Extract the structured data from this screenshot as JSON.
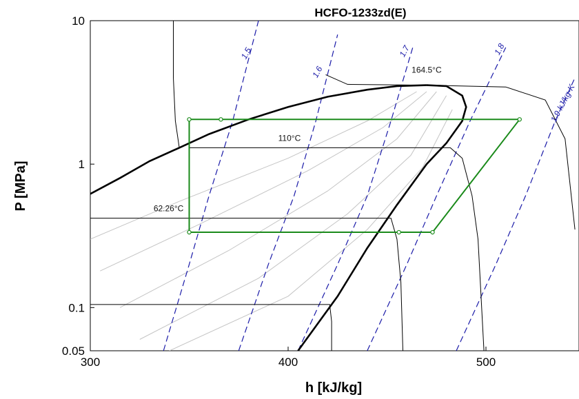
{
  "chart_data": {
    "type": "line",
    "title": "HCFO-1233zd(E)",
    "xlabel": "h [kJ/kg]",
    "ylabel": "P [MPa]",
    "xlim": [
      300,
      545
    ],
    "ylim": [
      0.05,
      10
    ],
    "y_scale": "log",
    "x_ticks": [
      "300",
      "400",
      "500"
    ],
    "y_ticks": [
      "0.05",
      "0.1",
      "1",
      "10"
    ],
    "grid": false,
    "legend": "none",
    "colors": {
      "saturation_dome": "#000000",
      "isotherm": "#000000",
      "quality_lines": "#c4c4c4",
      "isentrope": "#1a1aa8",
      "cycle": "#1a8a1a"
    },
    "saturation_liquid": [
      [
        300,
        0.62
      ],
      [
        315,
        0.8
      ],
      [
        330,
        1.05
      ],
      [
        345,
        1.3
      ],
      [
        360,
        1.62
      ],
      [
        380,
        2.05
      ],
      [
        400,
        2.5
      ],
      [
        420,
        2.95
      ],
      [
        440,
        3.3
      ],
      [
        455,
        3.5
      ],
      [
        470,
        3.55
      ]
    ],
    "saturation_vapor": [
      [
        470,
        3.55
      ],
      [
        480,
        3.5
      ],
      [
        488,
        3.0
      ],
      [
        490,
        2.5
      ],
      [
        488,
        2.0
      ],
      [
        480,
        1.4
      ],
      [
        470,
        1.0
      ],
      [
        455,
        0.52
      ],
      [
        440,
        0.26
      ],
      [
        425,
        0.12
      ],
      [
        405,
        0.05
      ]
    ],
    "critical_label": "164.5°C",
    "isotherms": [
      {
        "label": "110°C",
        "label_at": [
          395,
          1.45
        ],
        "points": [
          [
            350,
            1.3
          ],
          [
            482,
            1.3
          ],
          [
            488,
            1.1
          ],
          [
            493,
            0.6
          ],
          [
            496,
            0.3
          ],
          [
            499,
            0.05
          ]
        ]
      },
      {
        "label": "62.26°C",
        "label_at": [
          332,
          0.47
        ],
        "points": [
          [
            300,
            0.42
          ],
          [
            452,
            0.42
          ],
          [
            455,
            0.3
          ],
          [
            457,
            0.15
          ],
          [
            458,
            0.05
          ]
        ]
      },
      {
        "label": "",
        "points": [
          [
            300,
            0.105
          ],
          [
            421,
            0.105
          ],
          [
            422,
            0.08
          ],
          [
            422,
            0.05
          ]
        ]
      },
      {
        "label": "",
        "points": [
          [
            342,
            10
          ],
          [
            342,
            4
          ],
          [
            343,
            2.0
          ],
          [
            345,
            1.3
          ]
        ]
      },
      {
        "label": "",
        "points": [
          [
            419,
            4.2
          ],
          [
            430,
            3.6
          ],
          [
            470,
            3.55
          ],
          [
            510,
            3.45
          ],
          [
            530,
            2.8
          ],
          [
            540,
            1.5
          ],
          [
            545,
            0.35
          ]
        ]
      }
    ],
    "quality_lines": [
      {
        "points": [
          [
            300,
            0.3
          ],
          [
            345,
            0.55
          ],
          [
            400,
            1.1
          ],
          [
            440,
            2.0
          ],
          [
            465,
            3.2
          ]
        ]
      },
      {
        "points": [
          [
            305,
            0.18
          ],
          [
            355,
            0.38
          ],
          [
            410,
            0.9
          ],
          [
            448,
            1.8
          ],
          [
            470,
            3.2
          ]
        ]
      },
      {
        "points": [
          [
            315,
            0.1
          ],
          [
            370,
            0.25
          ],
          [
            420,
            0.65
          ],
          [
            455,
            1.5
          ],
          [
            475,
            3.2
          ]
        ]
      },
      {
        "points": [
          [
            325,
            0.06
          ],
          [
            385,
            0.16
          ],
          [
            430,
            0.45
          ],
          [
            462,
            1.15
          ],
          [
            480,
            3.0
          ]
        ]
      },
      {
        "points": [
          [
            340,
            0.05
          ],
          [
            400,
            0.12
          ],
          [
            440,
            0.35
          ],
          [
            468,
            0.95
          ],
          [
            483,
            2.4
          ]
        ]
      }
    ],
    "isentropes": [
      {
        "label": "1.5",
        "label_at": [
          380,
          5.8
        ],
        "points": [
          [
            337,
            0.05
          ],
          [
            350,
            0.2
          ],
          [
            360,
            0.6
          ],
          [
            372,
            2.0
          ],
          [
            385,
            10
          ]
        ]
      },
      {
        "label": "1.6",
        "label_at": [
          416,
          4.3
        ],
        "points": [
          [
            375,
            0.05
          ],
          [
            390,
            0.2
          ],
          [
            403,
            0.6
          ],
          [
            414,
            2.0
          ],
          [
            425,
            8
          ]
        ]
      },
      {
        "label": "1.7",
        "label_at": [
          460,
          6.0
        ],
        "points": [
          [
            405,
            0.05
          ],
          [
            425,
            0.2
          ],
          [
            440,
            0.6
          ],
          [
            452,
            2.0
          ],
          [
            463,
            6.5
          ]
        ]
      },
      {
        "label": "1.8",
        "label_at": [
          508,
          6.2
        ],
        "points": [
          [
            440,
            0.05
          ],
          [
            460,
            0.2
          ],
          [
            475,
            0.6
          ],
          [
            492,
            2.0
          ],
          [
            510,
            6.5
          ]
        ]
      },
      {
        "label": "1.9 kJ/kg-K",
        "label_at": [
          540,
          2.6
        ],
        "points": [
          [
            485,
            0.05
          ],
          [
            505,
            0.2
          ],
          [
            520,
            0.6
          ],
          [
            535,
            2.0
          ],
          [
            545,
            4.0
          ]
        ]
      }
    ],
    "cycle": [
      [
        350,
        0.335
      ],
      [
        350,
        2.05
      ],
      [
        366,
        2.05
      ],
      [
        517,
        2.05
      ],
      [
        473,
        0.335
      ],
      [
        456,
        0.335
      ],
      [
        350,
        0.335
      ]
    ],
    "cycle_markers": [
      [
        350,
        0.335
      ],
      [
        350,
        2.05
      ],
      [
        366,
        2.05
      ],
      [
        517,
        2.05
      ],
      [
        473,
        0.335
      ],
      [
        456,
        0.335
      ]
    ]
  }
}
